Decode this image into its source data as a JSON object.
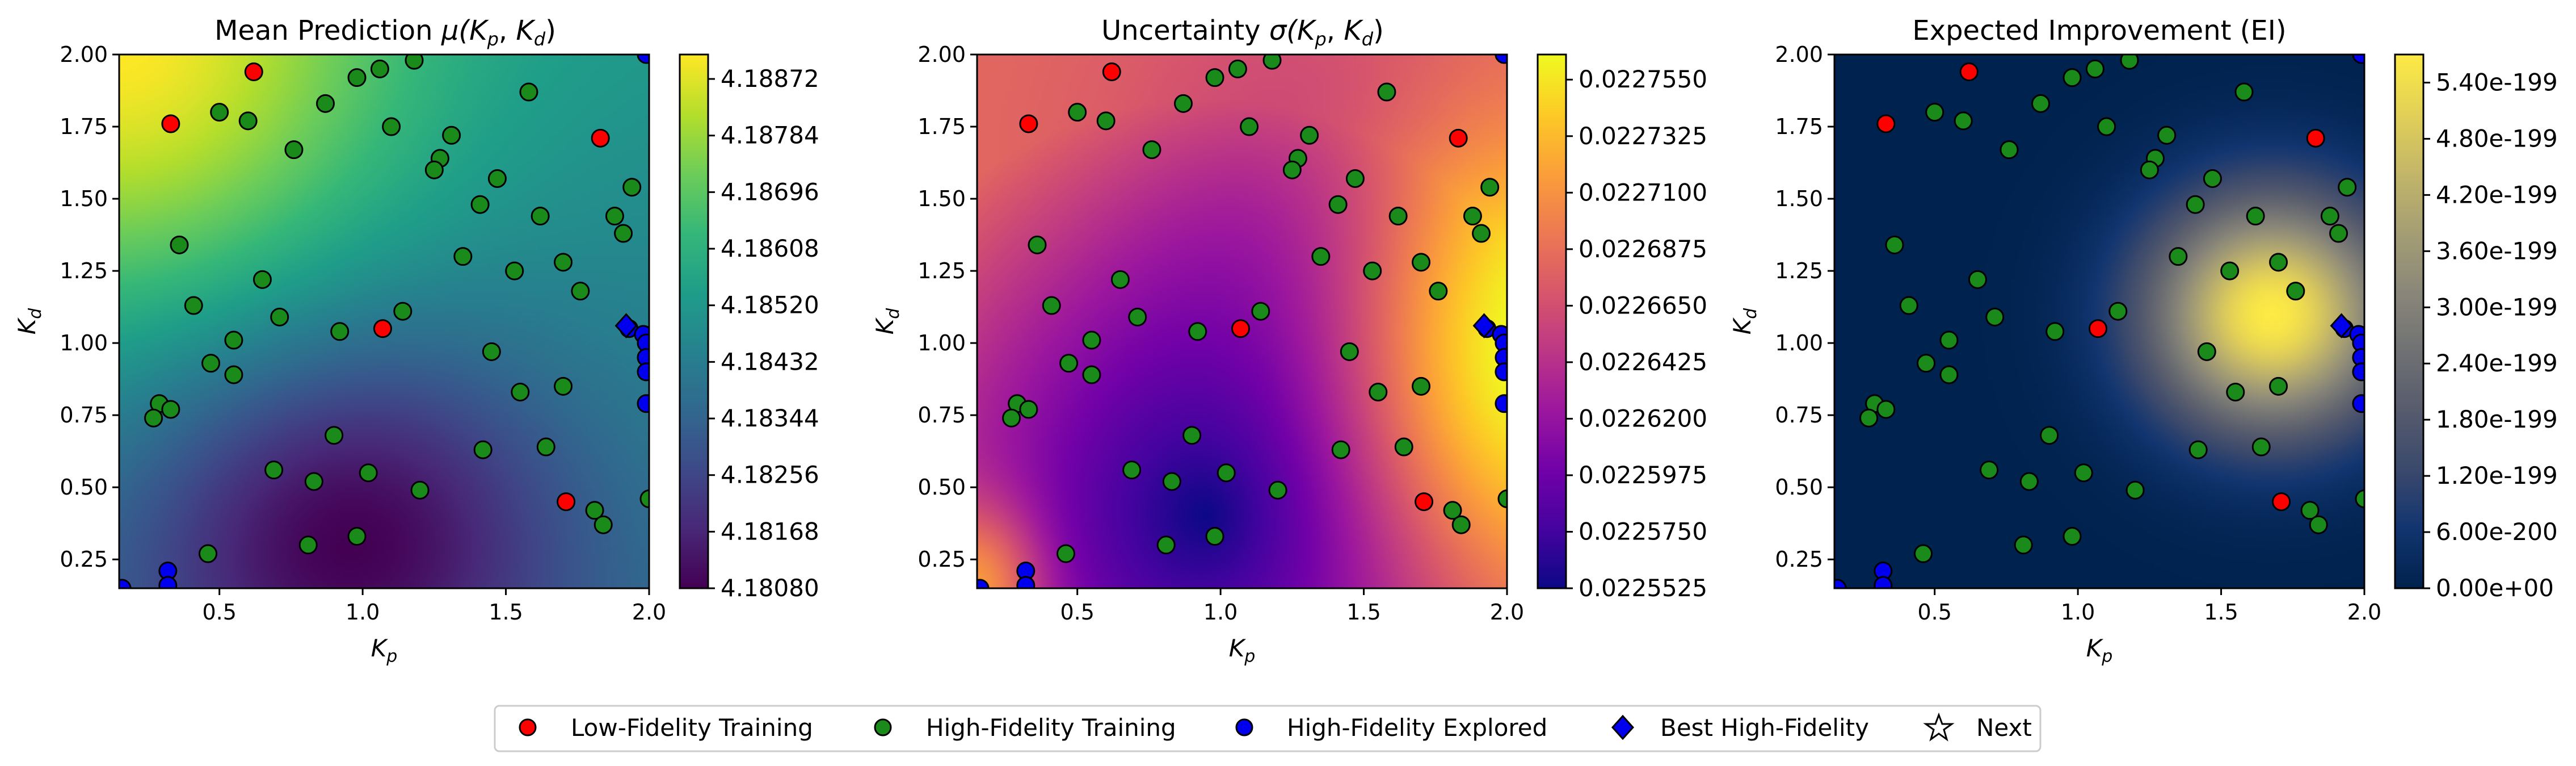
{
  "colors": {
    "low_fidelity": "#ff0000",
    "high_fidelity_training": "#1a8a1a",
    "high_fidelity_explored": "#0000ee",
    "best_high_fidelity": "#0000ee",
    "next": "#ffffff",
    "marker_edge": "#000000"
  },
  "legend": {
    "items": [
      {
        "label": "Low-Fidelity Training",
        "marker": "circle",
        "color": "#ff0000"
      },
      {
        "label": "High-Fidelity Training",
        "marker": "circle",
        "color": "#1a8a1a"
      },
      {
        "label": "High-Fidelity Explored",
        "marker": "circle",
        "color": "#0000ee"
      },
      {
        "label": "Best High-Fidelity",
        "marker": "diamond",
        "color": "#0000ee"
      },
      {
        "label": "Next",
        "marker": "star",
        "color": "#ffffff"
      }
    ]
  },
  "chart_data": [
    {
      "type": "heatmap",
      "title": "Mean Prediction μ(K_p, K_d)",
      "title_main": "Mean Prediction ",
      "title_math": "μ(",
      "title_sub1": "p",
      "title_sub2": "d",
      "xlabel": "K",
      "xlabel_sub": "p",
      "ylabel": "K",
      "ylabel_sub": "d",
      "xlim": [
        0.15,
        2.0
      ],
      "ylim": [
        0.15,
        2.0
      ],
      "xticks": [
        "0.5",
        "1.0",
        "1.5",
        "2.0"
      ],
      "yticks": [
        "0.25",
        "0.50",
        "0.75",
        "1.00",
        "1.25",
        "1.50",
        "1.75",
        "2.00"
      ],
      "colormap": "viridis",
      "colorbar_ticks": [
        "4.18080",
        "4.18168",
        "4.18256",
        "4.18344",
        "4.18432",
        "4.18520",
        "4.18608",
        "4.18696",
        "4.18784",
        "4.18872"
      ],
      "colorbar_range": [
        4.1808,
        4.1891
      ]
    },
    {
      "type": "heatmap",
      "title": "Uncertainty σ(K_p, K_d)",
      "title_main": "Uncertainty ",
      "title_math": "σ(",
      "title_sub1": "p",
      "title_sub2": "d",
      "xlabel": "K",
      "xlabel_sub": "p",
      "ylabel": "K",
      "ylabel_sub": "d",
      "xlim": [
        0.15,
        2.0
      ],
      "ylim": [
        0.15,
        2.0
      ],
      "xticks": [
        "0.5",
        "1.0",
        "1.5",
        "2.0"
      ],
      "yticks": [
        "0.25",
        "0.50",
        "0.75",
        "1.00",
        "1.25",
        "1.50",
        "1.75",
        "2.00"
      ],
      "colormap": "plasma",
      "colorbar_ticks": [
        "0.0225525",
        "0.0225750",
        "0.0225975",
        "0.0226200",
        "0.0226425",
        "0.0226650",
        "0.0226875",
        "0.0227100",
        "0.0227325",
        "0.0227550"
      ],
      "colorbar_range": [
        0.0225525,
        0.022765
      ]
    },
    {
      "type": "heatmap",
      "title": "Expected Improvement (EI)",
      "xlabel": "K",
      "xlabel_sub": "p",
      "ylabel": "K",
      "ylabel_sub": "d",
      "xlim": [
        0.15,
        2.0
      ],
      "ylim": [
        0.15,
        2.0
      ],
      "xticks": [
        "0.5",
        "1.0",
        "1.5",
        "2.0"
      ],
      "yticks": [
        "0.25",
        "0.50",
        "0.75",
        "1.00",
        "1.25",
        "1.50",
        "1.75",
        "2.00"
      ],
      "colormap": "cividis",
      "colorbar_ticks": [
        "0.00e+00",
        "6.00e-200",
        "1.20e-199",
        "1.80e-199",
        "2.40e-199",
        "3.00e-199",
        "3.60e-199",
        "4.20e-199",
        "4.80e-199",
        "5.40e-199"
      ],
      "colorbar_range": [
        0,
        5.7e-199
      ]
    }
  ],
  "points": {
    "low_fidelity": [
      [
        0.62,
        1.94
      ],
      [
        0.33,
        1.76
      ],
      [
        1.83,
        1.71
      ],
      [
        1.07,
        1.05
      ],
      [
        1.71,
        0.45
      ]
    ],
    "high_fidelity_training": [
      [
        0.5,
        1.8
      ],
      [
        0.6,
        1.77
      ],
      [
        0.87,
        1.83
      ],
      [
        0.76,
        1.67
      ],
      [
        0.98,
        1.92
      ],
      [
        1.06,
        1.95
      ],
      [
        1.18,
        1.98
      ],
      [
        1.1,
        1.75
      ],
      [
        1.31,
        1.72
      ],
      [
        1.27,
        1.64
      ],
      [
        1.25,
        1.6
      ],
      [
        1.47,
        1.57
      ],
      [
        1.58,
        1.87
      ],
      [
        1.41,
        1.48
      ],
      [
        1.62,
        1.44
      ],
      [
        1.94,
        1.54
      ],
      [
        1.88,
        1.44
      ],
      [
        1.91,
        1.38
      ],
      [
        0.36,
        1.34
      ],
      [
        0.65,
        1.22
      ],
      [
        1.35,
        1.3
      ],
      [
        1.7,
        1.28
      ],
      [
        1.53,
        1.25
      ],
      [
        1.76,
        1.18
      ],
      [
        0.41,
        1.13
      ],
      [
        1.14,
        1.11
      ],
      [
        0.71,
        1.09
      ],
      [
        0.92,
        1.04
      ],
      [
        0.55,
        1.01
      ],
      [
        0.47,
        0.93
      ],
      [
        0.55,
        0.89
      ],
      [
        1.45,
        0.97
      ],
      [
        1.55,
        0.83
      ],
      [
        1.7,
        0.85
      ],
      [
        0.29,
        0.79
      ],
      [
        0.27,
        0.74
      ],
      [
        0.33,
        0.77
      ],
      [
        0.9,
        0.68
      ],
      [
        1.42,
        0.63
      ],
      [
        1.64,
        0.64
      ],
      [
        0.69,
        0.56
      ],
      [
        0.83,
        0.52
      ],
      [
        1.02,
        0.55
      ],
      [
        1.2,
        0.49
      ],
      [
        1.81,
        0.42
      ],
      [
        1.84,
        0.37
      ],
      [
        0.81,
        0.3
      ],
      [
        0.98,
        0.33
      ],
      [
        0.46,
        0.27
      ],
      [
        2.0,
        0.46
      ]
    ],
    "high_fidelity_explored": [
      [
        0.32,
        0.21
      ],
      [
        0.32,
        0.16
      ],
      [
        0.16,
        0.15
      ],
      [
        1.93,
        1.05
      ],
      [
        1.98,
        1.03
      ],
      [
        1.99,
        1.0
      ],
      [
        1.99,
        0.95
      ],
      [
        1.99,
        0.9
      ],
      [
        1.99,
        0.79
      ],
      [
        1.99,
        2.0
      ]
    ],
    "best_high_fidelity": [
      [
        1.92,
        1.06
      ]
    ]
  }
}
